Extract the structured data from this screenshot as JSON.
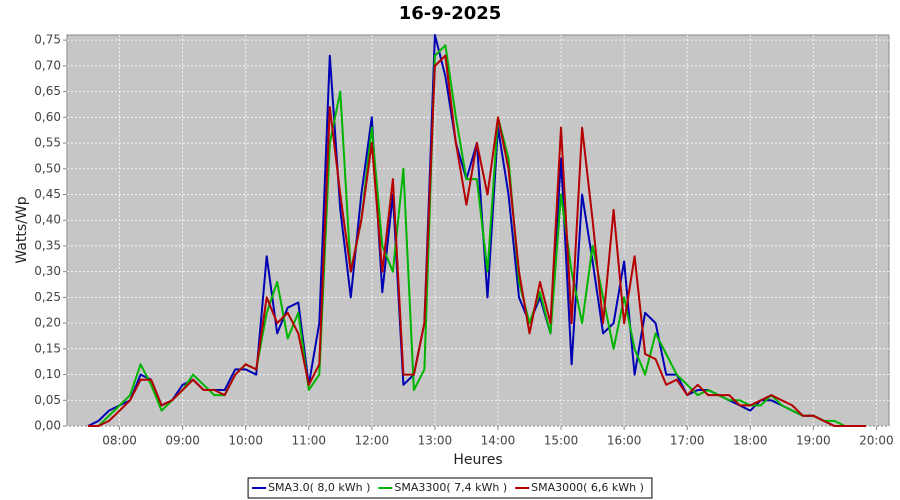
{
  "chart_data": {
    "type": "line",
    "title": "16-9-2025",
    "x_label": "Heures",
    "y_label": "Watts/Wp",
    "x": [
      "07:30",
      "07:40",
      "07:50",
      "08:00",
      "08:10",
      "08:20",
      "08:30",
      "08:40",
      "08:50",
      "09:00",
      "09:10",
      "09:20",
      "09:30",
      "09:40",
      "09:50",
      "10:00",
      "10:10",
      "10:20",
      "10:30",
      "10:40",
      "10:50",
      "11:00",
      "11:10",
      "11:20",
      "11:30",
      "11:40",
      "11:50",
      "12:00",
      "12:10",
      "12:20",
      "12:30",
      "12:40",
      "12:50",
      "13:00",
      "13:10",
      "13:20",
      "13:30",
      "13:40",
      "13:50",
      "14:00",
      "14:10",
      "14:20",
      "14:30",
      "14:40",
      "14:50",
      "15:00",
      "15:10",
      "15:20",
      "15:30",
      "15:40",
      "15:50",
      "16:00",
      "16:10",
      "16:20",
      "16:30",
      "16:40",
      "16:50",
      "17:00",
      "17:10",
      "17:20",
      "17:30",
      "17:40",
      "17:50",
      "18:00",
      "18:10",
      "18:20",
      "18:30",
      "18:40",
      "18:50",
      "19:00",
      "19:10",
      "19:20",
      "19:30",
      "19:40",
      "19:50"
    ],
    "series": [
      {
        "name": "SMA3.0( 8,0 kWh )",
        "color": "#0000b4",
        "values": [
          0,
          0.01,
          0.03,
          0.04,
          0.05,
          0.1,
          0.09,
          0.04,
          0.05,
          0.08,
          0.09,
          0.07,
          0.07,
          0.07,
          0.11,
          0.11,
          0.1,
          0.33,
          0.18,
          0.23,
          0.24,
          0.08,
          0.2,
          0.72,
          0.42,
          0.25,
          0.45,
          0.6,
          0.26,
          0.45,
          0.08,
          0.1,
          0.2,
          0.76,
          0.68,
          0.55,
          0.48,
          0.55,
          0.25,
          0.58,
          0.45,
          0.25,
          0.2,
          0.25,
          0.18,
          0.52,
          0.12,
          0.45,
          0.32,
          0.18,
          0.2,
          0.32,
          0.1,
          0.22,
          0.2,
          0.1,
          0.1,
          0.06,
          0.07,
          0.07,
          0.06,
          0.05,
          0.04,
          0.03,
          0.05,
          0.05,
          0.04,
          0.03,
          0.02,
          0.02,
          0.01,
          0,
          0,
          0,
          0
        ]
      },
      {
        "name": "SMA3300( 7,4 kWh )",
        "color": "#00b400",
        "values": [
          0,
          0,
          0.02,
          0.04,
          0.06,
          0.12,
          0.08,
          0.03,
          0.05,
          0.07,
          0.1,
          0.08,
          0.06,
          0.06,
          0.1,
          0.12,
          0.11,
          0.22,
          0.28,
          0.17,
          0.22,
          0.07,
          0.1,
          0.55,
          0.65,
          0.3,
          0.4,
          0.58,
          0.35,
          0.3,
          0.5,
          0.07,
          0.11,
          0.72,
          0.74,
          0.6,
          0.48,
          0.48,
          0.3,
          0.6,
          0.52,
          0.28,
          0.2,
          0.26,
          0.18,
          0.45,
          0.3,
          0.2,
          0.35,
          0.25,
          0.15,
          0.25,
          0.15,
          0.1,
          0.18,
          0.14,
          0.1,
          0.08,
          0.06,
          0.07,
          0.06,
          0.05,
          0.05,
          0.04,
          0.04,
          0.06,
          0.04,
          0.03,
          0.02,
          0.02,
          0.01,
          0.01,
          0,
          0,
          0
        ]
      },
      {
        "name": "SMA3000( 6,6 kWh )",
        "color": "#b40000",
        "values": [
          0,
          0,
          0.01,
          0.03,
          0.05,
          0.09,
          0.09,
          0.04,
          0.05,
          0.07,
          0.09,
          0.07,
          0.07,
          0.06,
          0.1,
          0.12,
          0.11,
          0.25,
          0.2,
          0.22,
          0.18,
          0.08,
          0.12,
          0.62,
          0.45,
          0.3,
          0.4,
          0.55,
          0.3,
          0.48,
          0.1,
          0.1,
          0.2,
          0.7,
          0.72,
          0.55,
          0.43,
          0.55,
          0.45,
          0.6,
          0.5,
          0.3,
          0.18,
          0.28,
          0.2,
          0.58,
          0.2,
          0.58,
          0.4,
          0.2,
          0.42,
          0.2,
          0.33,
          0.14,
          0.13,
          0.08,
          0.09,
          0.06,
          0.08,
          0.06,
          0.06,
          0.06,
          0.04,
          0.04,
          0.05,
          0.06,
          0.05,
          0.04,
          0.02,
          0.02,
          0.01,
          0,
          0,
          0,
          0
        ]
      }
    ],
    "xlim": [
      "07:10",
      "20:12"
    ],
    "xticks": [
      "08:00",
      "09:00",
      "10:00",
      "11:00",
      "12:00",
      "13:00",
      "14:00",
      "15:00",
      "16:00",
      "17:00",
      "18:00",
      "19:00",
      "20:00"
    ],
    "ylim": [
      0,
      0.76
    ],
    "yticks": [
      {
        "value": 0,
        "label": "0,00"
      },
      {
        "value": 0.05,
        "label": "0,05"
      },
      {
        "value": 0.1,
        "label": "0,10"
      },
      {
        "value": 0.15,
        "label": "0,15"
      },
      {
        "value": 0.2,
        "label": "0,20"
      },
      {
        "value": 0.25,
        "label": "0,25"
      },
      {
        "value": 0.3,
        "label": "0,30"
      },
      {
        "value": 0.35,
        "label": "0,35"
      },
      {
        "value": 0.4,
        "label": "0,40"
      },
      {
        "value": 0.45,
        "label": "0,45"
      },
      {
        "value": 0.5,
        "label": "0,50"
      },
      {
        "value": 0.55,
        "label": "0,55"
      },
      {
        "value": 0.6,
        "label": "0,60"
      },
      {
        "value": 0.65,
        "label": "0,65"
      },
      {
        "value": 0.7,
        "label": "0,70"
      },
      {
        "value": 0.75,
        "label": "0,75"
      }
    ],
    "grid": true
  }
}
